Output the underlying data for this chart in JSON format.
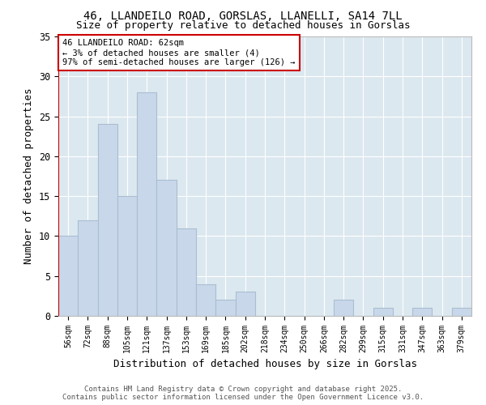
{
  "title1": "46, LLANDEILO ROAD, GORSLAS, LLANELLI, SA14 7LL",
  "title2": "Size of property relative to detached houses in Gorslas",
  "xlabel": "Distribution of detached houses by size in Gorslas",
  "ylabel": "Number of detached properties",
  "categories": [
    "56sqm",
    "72sqm",
    "88sqm",
    "105sqm",
    "121sqm",
    "137sqm",
    "153sqm",
    "169sqm",
    "185sqm",
    "202sqm",
    "218sqm",
    "234sqm",
    "250sqm",
    "266sqm",
    "282sqm",
    "299sqm",
    "315sqm",
    "331sqm",
    "347sqm",
    "363sqm",
    "379sqm"
  ],
  "values": [
    10,
    12,
    24,
    15,
    28,
    17,
    11,
    4,
    2,
    3,
    0,
    0,
    0,
    0,
    2,
    0,
    1,
    0,
    1,
    0,
    1
  ],
  "bar_color": "#c8d8ea",
  "bar_edgecolor": "#aabdd0",
  "bar_linewidth": 0.8,
  "vline_x": -0.5,
  "vline_color": "#cc0000",
  "annotation_text": "46 LLANDEILO ROAD: 62sqm\n← 3% of detached houses are smaller (4)\n97% of semi-detached houses are larger (126) →",
  "annotation_box_color": "#ffffff",
  "annotation_box_edgecolor": "#cc0000",
  "ylim": [
    0,
    35
  ],
  "yticks": [
    0,
    5,
    10,
    15,
    20,
    25,
    30,
    35
  ],
  "background_color": "#dce8f0",
  "grid_color": "#ffffff",
  "fig_background": "#ffffff",
  "footer": "Contains HM Land Registry data © Crown copyright and database right 2025.\nContains public sector information licensed under the Open Government Licence v3.0."
}
